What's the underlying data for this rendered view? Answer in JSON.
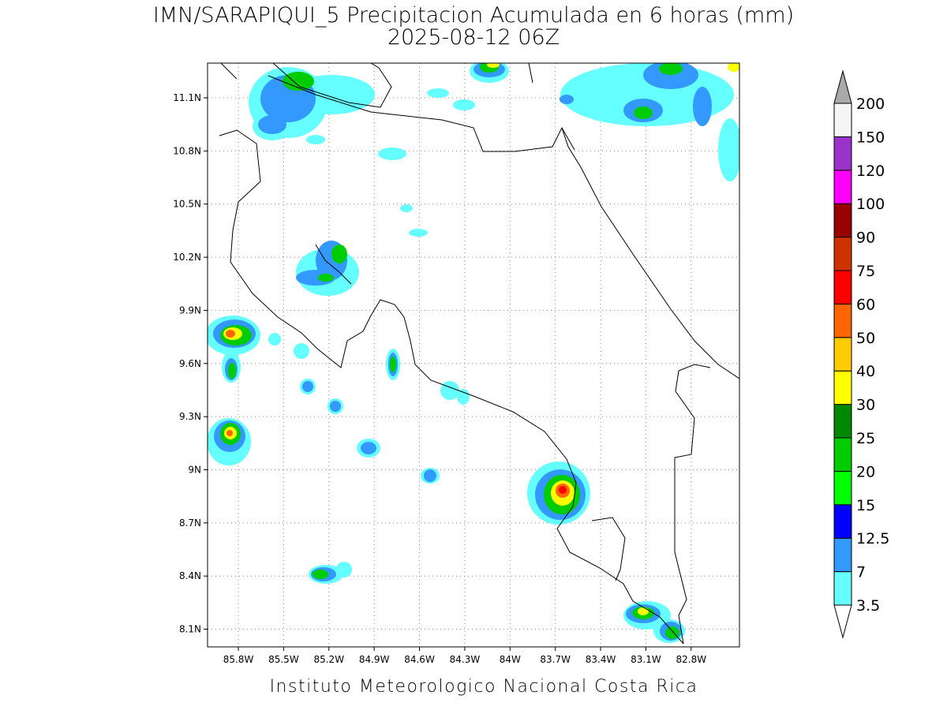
{
  "map": {
    "title": "IMN/SARAPIQUI_5 Precipitacion Acumulada en 6 horas (mm)",
    "subtitle": "2025-08-12 06Z",
    "credit": "Instituto Meteorologico Nacional Costa Rica",
    "latlim": [
      8.0,
      11.296
    ],
    "lonlim": [
      -86.004,
      -82.48
    ],
    "lat_ticks": [
      {
        "value": 11.1,
        "label": "11.1N"
      },
      {
        "value": 10.8,
        "label": "10.8N"
      },
      {
        "value": 10.5,
        "label": "10.5N"
      },
      {
        "value": 10.2,
        "label": "10.2N"
      },
      {
        "value": 9.9,
        "label": "9.9N"
      },
      {
        "value": 9.6,
        "label": "9.6N"
      },
      {
        "value": 9.3,
        "label": "9.3N"
      },
      {
        "value": 9,
        "label": "9N"
      },
      {
        "value": 8.7,
        "label": "8.7N"
      },
      {
        "value": 8.4,
        "label": "8.4N"
      },
      {
        "value": 8.1,
        "label": "8.1N"
      }
    ],
    "lon_ticks": [
      {
        "value": -85.8,
        "label": "85.8W"
      },
      {
        "value": -85.5,
        "label": "85.5W"
      },
      {
        "value": -85.2,
        "label": "85.2W"
      },
      {
        "value": -84.9,
        "label": "84.9W"
      },
      {
        "value": -84.6,
        "label": "84.6W"
      },
      {
        "value": -84.3,
        "label": "84.3W"
      },
      {
        "value": -84,
        "label": "84W"
      },
      {
        "value": -83.7,
        "label": "83.7W"
      },
      {
        "value": -83.4,
        "label": "83.4W"
      },
      {
        "value": -83.1,
        "label": "83.1W"
      },
      {
        "value": -82.8,
        "label": "82.8W"
      }
    ],
    "grid": true,
    "colorbar": {
      "levels": [
        3.5,
        7,
        12.5,
        15,
        20,
        25,
        30,
        40,
        50,
        60,
        75,
        90,
        100,
        120,
        150,
        200
      ],
      "colors": [
        "#66ffff",
        "#3399ff",
        "#0000ff",
        "#00ff00",
        "#00cc00",
        "#008800",
        "#ffff00",
        "#ffcc00",
        "#ff6600",
        "#ff0000",
        "#cc3300",
        "#990000",
        "#ff00ff",
        "#9933cc",
        "#f5f5f5"
      ],
      "under_color": "#ffffff",
      "over_color": "#aaaaaa"
    }
  }
}
